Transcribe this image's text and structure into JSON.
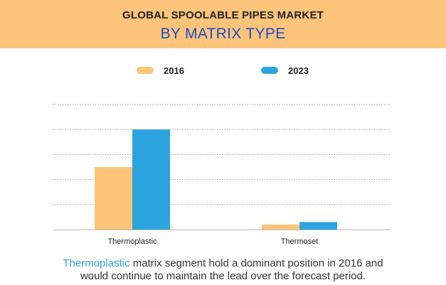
{
  "banner": {
    "title": "GLOBAL SPOOLABLE PIPES MARKET",
    "subtitle": "BY MATRIX TYPE"
  },
  "colors": {
    "banner_bg": "#fbc47a",
    "subtitle": "#1f4cc7",
    "series_2016": "#fcc579",
    "series_2023": "#2ca4df",
    "highlight": "#2ba3dd"
  },
  "legend": [
    {
      "label": "2016",
      "color": "#fcc579"
    },
    {
      "label": "2023",
      "color": "#2ca4df"
    }
  ],
  "chart_data": {
    "type": "bar",
    "title": "GLOBAL SPOOLABLE PIPES MARKET",
    "subtitle": "BY MATRIX TYPE",
    "categories": [
      "Thermoplastic",
      "Thermoset"
    ],
    "series": [
      {
        "name": "2016",
        "values": [
          2.5,
          0.2
        ]
      },
      {
        "name": "2023",
        "values": [
          4.0,
          0.3
        ]
      }
    ],
    "ylim": [
      0,
      5
    ],
    "y_gridlines": 5,
    "grid": true,
    "grid_style": "dotted",
    "y_tick_labels_shown": false,
    "legend_position": "top-center",
    "xlabel": "",
    "ylabel": ""
  },
  "caption": {
    "highlight": "Thermoplastic",
    "rest_line1": " matrix segment hold a dominant position in 2016 and",
    "line2": "would continue to maintain the lead over the forecast period."
  }
}
